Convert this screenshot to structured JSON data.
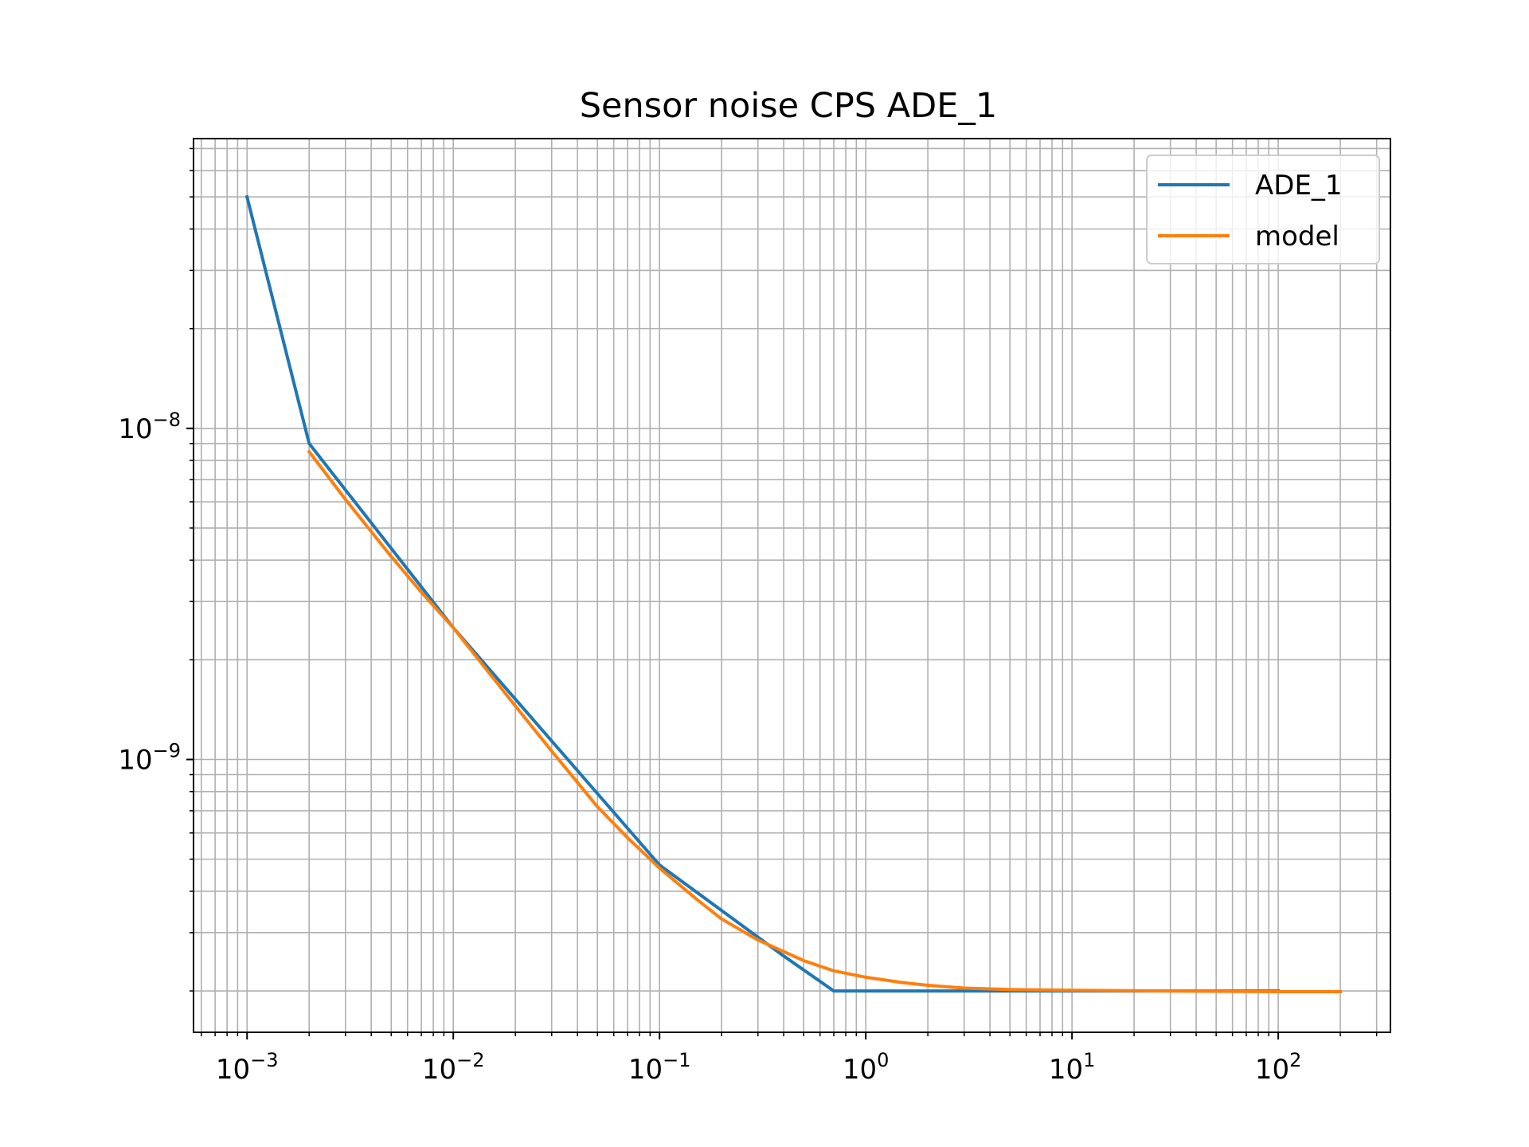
{
  "chart_data": {
    "type": "line",
    "title": "Sensor noise CPS ADE_1",
    "xlabel": "",
    "ylabel": "",
    "xscale": "log",
    "yscale": "log",
    "xlim": [
      0.00055,
      350
    ],
    "ylim": [
      1.5e-10,
      7.5e-08
    ],
    "grid": "major and minor",
    "legend_position": "top-right",
    "x_ticks": [
      {
        "base": "10",
        "exp": "−3",
        "value": 0.001
      },
      {
        "base": "10",
        "exp": "−2",
        "value": 0.01
      },
      {
        "base": "10",
        "exp": "−1",
        "value": 0.1
      },
      {
        "base": "10",
        "exp": "0",
        "value": 1
      },
      {
        "base": "10",
        "exp": "1",
        "value": 10
      },
      {
        "base": "10",
        "exp": "2",
        "value": 100
      }
    ],
    "y_ticks": [
      {
        "base": "10",
        "exp": "−8",
        "value": 1e-08
      },
      {
        "base": "10",
        "exp": "−9",
        "value": 1e-09
      }
    ],
    "series": [
      {
        "name": "ADE_1",
        "color": "#1f77b4",
        "x": [
          0.001,
          0.002,
          0.01,
          0.1,
          0.4,
          0.7,
          100
        ],
        "y": [
          5e-08,
          9e-09,
          2.5e-09,
          4.8e-10,
          2.55e-10,
          2e-10,
          2e-10
        ]
      },
      {
        "name": "model",
        "color": "#ff7f0e",
        "x": [
          0.002,
          0.003,
          0.005,
          0.007,
          0.01,
          0.02,
          0.03,
          0.05,
          0.07,
          0.1,
          0.15,
          0.2,
          0.3,
          0.5,
          0.7,
          1,
          1.5,
          2,
          3,
          5,
          10,
          30,
          100,
          200
        ],
        "y": [
          8.5e-09,
          6.1e-09,
          4.1e-09,
          3.2e-09,
          2.5e-09,
          1.45e-09,
          1.06e-09,
          7.2e-10,
          5.8e-10,
          4.7e-10,
          3.8e-10,
          3.3e-10,
          2.85e-10,
          2.47e-10,
          2.3e-10,
          2.2e-10,
          2.12e-10,
          2.08e-10,
          2.04e-10,
          2.02e-10,
          2.01e-10,
          2e-10,
          1.99e-10,
          1.99e-10
        ]
      }
    ]
  }
}
